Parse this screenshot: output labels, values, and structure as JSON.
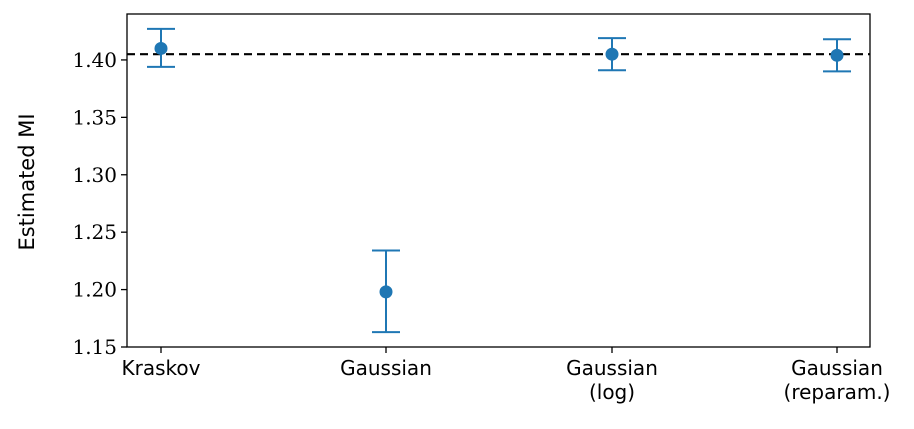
{
  "chart_data": {
    "type": "scatter",
    "title": "",
    "xlabel": "",
    "ylabel": "Estimated MI",
    "categories": [
      [
        "Kraskov"
      ],
      [
        "Gaussian"
      ],
      [
        "Gaussian",
        "(log)"
      ],
      [
        "Gaussian",
        "(reparam.)"
      ]
    ],
    "values": [
      1.41,
      1.198,
      1.405,
      1.404
    ],
    "error_low": [
      1.394,
      1.163,
      1.391,
      1.39
    ],
    "error_high": [
      1.427,
      1.234,
      1.419,
      1.418
    ],
    "reference_line": 1.405,
    "ylim": [
      1.15,
      1.44
    ],
    "yticks": [
      "1.15",
      "1.20",
      "1.25",
      "1.30",
      "1.35",
      "1.40"
    ],
    "grid": false,
    "color": "#1f77b4",
    "reference_color": "#000000"
  }
}
